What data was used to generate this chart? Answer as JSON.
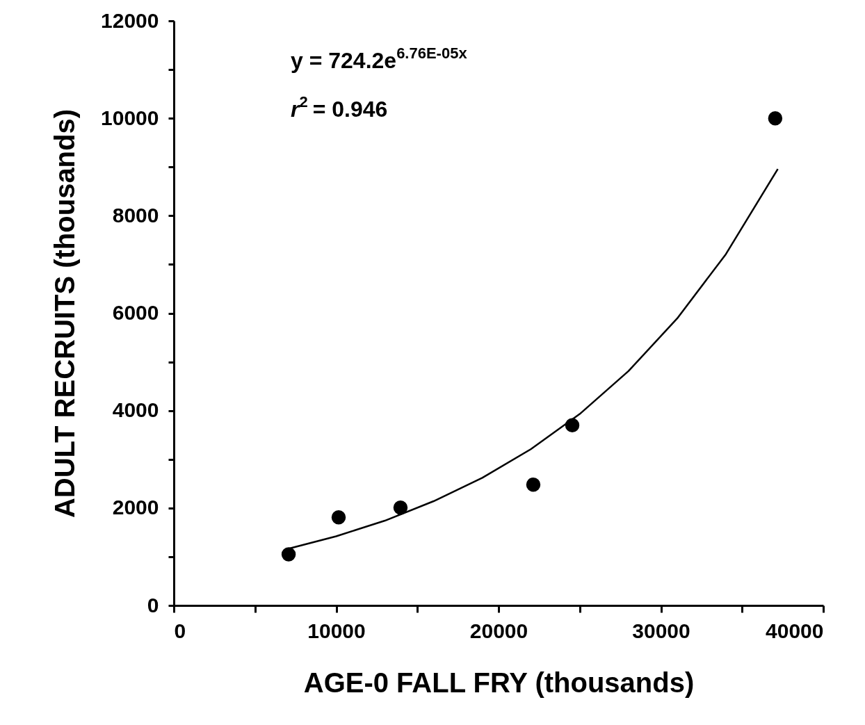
{
  "chart_data": {
    "type": "scatter",
    "xlabel": "AGE-0 FALL FRY (thousands)",
    "ylabel": "ADULT RECRUITS (thousands)",
    "xlim": [
      0,
      40000
    ],
    "ylim": [
      0,
      12000
    ],
    "xticks": [
      0,
      {
        "value": 5000,
        "label": null
      },
      10000,
      {
        "value": 15000,
        "label": null
      },
      20000,
      {
        "value": 25000,
        "label": null
      },
      30000,
      {
        "value": 35000,
        "label": null
      },
      40000
    ],
    "yticks": [
      0,
      {
        "value": 1000,
        "label": null
      },
      2000,
      {
        "value": 3000,
        "label": null
      },
      4000,
      {
        "value": 5000,
        "label": null
      },
      6000,
      {
        "value": 7000,
        "label": null
      },
      8000,
      {
        "value": 9000,
        "label": null
      },
      10000,
      {
        "value": 11000,
        "label": null
      },
      12000
    ],
    "grid": false,
    "marker": "circle",
    "annotations": [
      "y = 724.2e$^{6.76E-05x}$",
      "r$^{2}$ = 0.946"
    ],
    "series": [
      {
        "color": "#000000",
        "x": [
          7070,
          10150,
          13960,
          22140,
          24540,
          37040
        ],
        "values": [
          1050,
          1810,
          2010,
          2480,
          3700,
          10000
        ]
      },
      {
        "type": "line",
        "color": "#000000",
        "marker": "none",
        "line_style": "solid",
        "x": [
          7000,
          10000,
          13000,
          16000,
          19000,
          22000,
          25000,
          28000,
          31000,
          34000,
          37200
        ],
        "values": [
          1160,
          1420,
          1740,
          2140,
          2620,
          3210,
          3930,
          4810,
          5890,
          7210,
          8960
        ]
      }
    ]
  }
}
